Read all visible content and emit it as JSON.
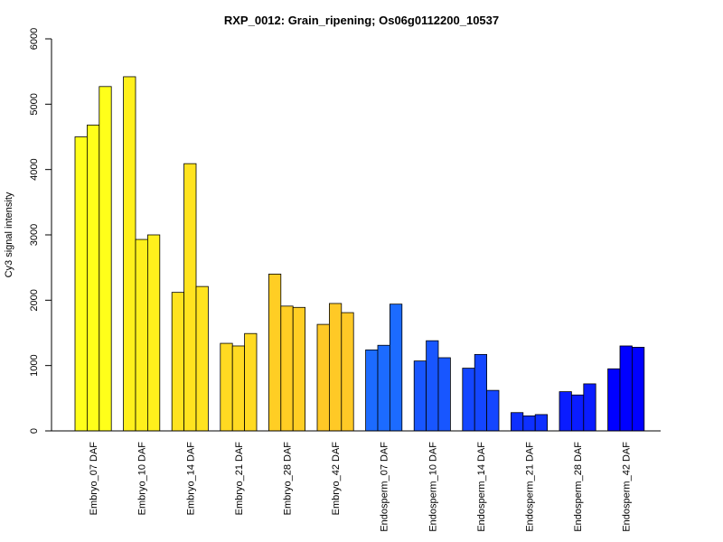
{
  "chart_data": {
    "type": "bar",
    "title": "RXP_0012: Grain_ripening; Os06g0112200_10537",
    "xlabel": "",
    "ylabel": "Cy3 signal intensity",
    "ylim": [
      0,
      6000
    ],
    "yticks": [
      0,
      1000,
      2000,
      3000,
      4000,
      5000,
      6000
    ],
    "categories": [
      "Embryo_07 DAF",
      "Embryo_10 DAF",
      "Embryo_14 DAF",
      "Embryo_21 DAF",
      "Embryo_28 DAF",
      "Embryo_42 DAF",
      "Endosperm_07 DAF",
      "Endosperm_10 DAF",
      "Endosperm_14 DAF",
      "Endosperm_21 DAF",
      "Endosperm_28 DAF",
      "Endosperm_42 DAF"
    ],
    "replicates": [
      [
        4500,
        4680,
        5270
      ],
      [
        5420,
        2930,
        3000
      ],
      [
        2120,
        4090,
        2210
      ],
      [
        1340,
        1300,
        1490
      ],
      [
        2400,
        1910,
        1890
      ],
      [
        1630,
        1950,
        1810
      ],
      [
        1240,
        1310,
        1940
      ],
      [
        1070,
        1380,
        1120
      ],
      [
        960,
        1170,
        620
      ],
      [
        280,
        230,
        250
      ],
      [
        600,
        550,
        720
      ],
      [
        950,
        1300,
        1280
      ]
    ],
    "group_colors": [
      "#FFFF1A",
      "#FFF01C",
      "#FFE31F",
      "#FFDA22",
      "#FFCE24",
      "#FFC926",
      "#1C6BFF",
      "#1856FF",
      "#1446FF",
      "#0E30FF",
      "#0A1CFF",
      "#0000FF"
    ],
    "grid": false,
    "legend": "none"
  }
}
